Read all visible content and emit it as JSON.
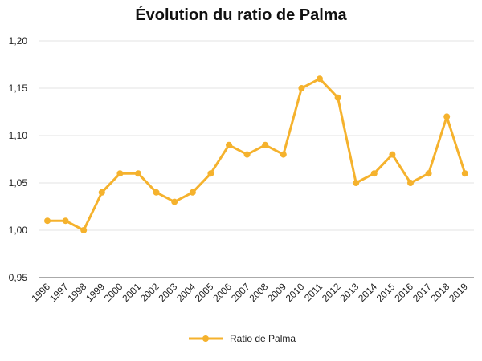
{
  "chart_data": {
    "type": "line",
    "title": "Évolution du ratio de Palma",
    "xlabel": "",
    "ylabel": "",
    "categories": [
      "1996",
      "1997",
      "1998",
      "1999",
      "2000",
      "2001",
      "2002",
      "2003",
      "2004",
      "2005",
      "2006",
      "2007",
      "2008",
      "2009",
      "2010",
      "2011",
      "2012",
      "2013",
      "2014",
      "2015",
      "2016",
      "2017",
      "2018",
      "2019"
    ],
    "series": [
      {
        "name": "Ratio de Palma",
        "color": "#F5B22D",
        "values": [
          1.01,
          1.01,
          1.0,
          1.04,
          1.06,
          1.06,
          1.04,
          1.03,
          1.04,
          1.06,
          1.09,
          1.08,
          1.09,
          1.08,
          1.15,
          1.16,
          1.14,
          1.05,
          1.06,
          1.08,
          1.05,
          1.06,
          1.12,
          1.06
        ]
      }
    ],
    "ylim": [
      0.95,
      1.2
    ],
    "yticks": [
      "0,95",
      "1,00",
      "1,05",
      "1,10",
      "1,15",
      "1,20"
    ],
    "grid": true,
    "legend_position": "bottom"
  }
}
